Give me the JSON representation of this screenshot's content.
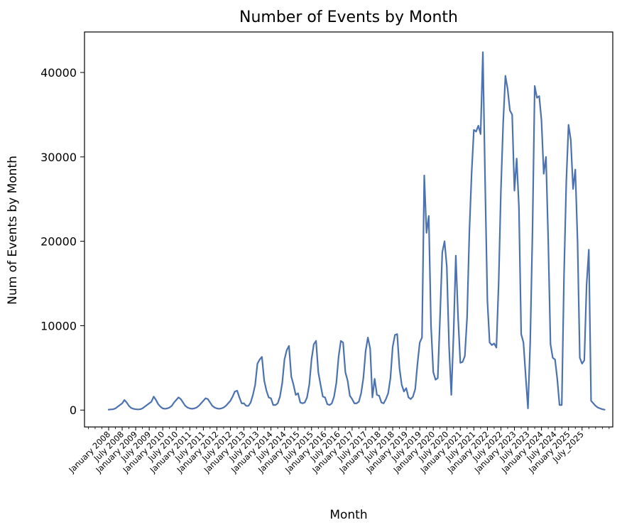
{
  "chart_data": {
    "type": "line",
    "title": "Number of Events by Month",
    "xlabel": "Month",
    "ylabel": "Num of Events by Month",
    "ylim": [
      -2000,
      44800
    ],
    "yticks": [
      0,
      10000,
      20000,
      30000,
      40000
    ],
    "grid": false,
    "line_color": "#4c72b0",
    "x_start": "2008-01",
    "x_tick_labels": [
      "January 2008",
      "July 2008",
      "January 2009",
      "July 2009",
      "January 2010",
      "July 2010",
      "January 2011",
      "July 2011",
      "January 2012",
      "July 2012",
      "January 2013",
      "July 2013",
      "January 2014",
      "July 2014",
      "January 2015",
      "July 2015",
      "January 2016",
      "July 2016",
      "January 2017",
      "July 2017",
      "January 2018",
      "July 2018",
      "January 2019",
      "July 2019",
      "January 2020",
      "July 2020",
      "January 2021",
      "July 2021",
      "January 2022",
      "July 2022",
      "January 2023",
      "July 2023",
      "January 2024",
      "July 2024",
      "January 2025",
      "July_2025"
    ],
    "series": [
      {
        "values": [
          50,
          80,
          100,
          200,
          400,
          600,
          800,
          1200,
          900,
          500,
          250,
          150,
          100,
          80,
          100,
          200,
          400,
          600,
          800,
          1000,
          1600,
          1200,
          700,
          400,
          200,
          150,
          200,
          300,
          500,
          900,
          1200,
          1500,
          1300,
          900,
          500,
          300,
          200,
          150,
          200,
          300,
          500,
          800,
          1100,
          1400,
          1300,
          900,
          500,
          300,
          200,
          150,
          200,
          300,
          500,
          800,
          1100,
          1600,
          2200,
          2300,
          1500,
          800,
          800,
          500,
          500,
          900,
          1800,
          3000,
          5500,
          6000,
          6300,
          3500,
          2300,
          1500,
          1400,
          600,
          600,
          800,
          1600,
          3200,
          6000,
          7100,
          7600,
          4000,
          3000,
          1800,
          2000,
          900,
          800,
          900,
          1500,
          3000,
          6000,
          7800,
          8200,
          4500,
          3000,
          1600,
          1500,
          700,
          600,
          800,
          1600,
          3200,
          6300,
          8200,
          8000,
          4500,
          3500,
          1700,
          1300,
          800,
          800,
          1000,
          2000,
          3800,
          7000,
          8600,
          7300,
          1500,
          3700,
          1800,
          1700,
          900,
          800,
          1300,
          2000,
          3800,
          7500,
          8900,
          9000,
          5000,
          3000,
          2200,
          2600,
          1500,
          1300,
          1600,
          2500,
          5500,
          8000,
          8600,
          27800,
          21000,
          23000,
          10000,
          4500,
          3600,
          3800,
          11000,
          18700,
          20000,
          17000,
          7600,
          1800,
          9000,
          18300,
          11000,
          5600,
          5700,
          6400,
          11000,
          21000,
          28000,
          33200,
          33000,
          33700,
          32700,
          42400,
          27000,
          13000,
          8000,
          7700,
          7900,
          7400,
          15000,
          26000,
          34000,
          39600,
          38000,
          35500,
          35000,
          26000,
          29800,
          24000,
          9000,
          8000,
          4000,
          200,
          8000,
          21000,
          38400,
          37000,
          37200,
          34300,
          28000,
          30000,
          20000,
          7800,
          6200,
          6000,
          3700,
          600,
          600,
          16000,
          27000,
          33800,
          32000,
          26200,
          28500,
          20000,
          6200,
          5500,
          5900,
          14800,
          19000,
          1100,
          800,
          500,
          300,
          200,
          100,
          50
        ]
      }
    ]
  }
}
